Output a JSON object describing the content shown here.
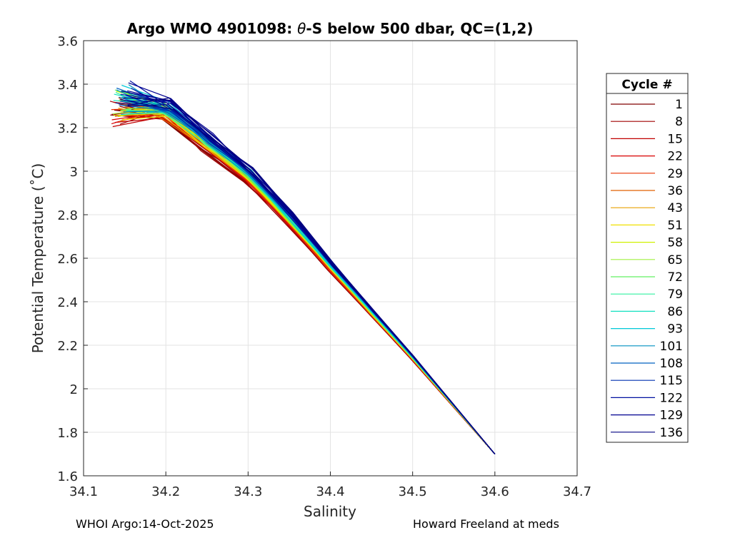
{
  "chart_data": {
    "type": "line",
    "title_prefix": "Argo WMO 4901098: ",
    "title_theta": "θ",
    "title_suffix": "-S below 500 dbar,  QC=(1,2)",
    "xlabel": "Salinity",
    "ylabel": "Potential Temperature (˚C)",
    "xlim": [
      34.1,
      34.7
    ],
    "ylim": [
      1.6,
      3.6
    ],
    "x_ticks": [
      "34.1",
      "34.2",
      "34.3",
      "34.4",
      "34.5",
      "34.6",
      "34.7"
    ],
    "y_ticks": [
      "1.6",
      "1.8",
      "2",
      "2.2",
      "2.4",
      "2.6",
      "2.8",
      "3",
      "3.2",
      "3.4",
      "3.6"
    ],
    "grid": true,
    "legend_title": "Cycle #",
    "legend_position": "right",
    "series": [
      {
        "name": "1",
        "color": "#800000"
      },
      {
        "name": "8",
        "color": "#a00000"
      },
      {
        "name": "15",
        "color": "#c00000"
      },
      {
        "name": "22",
        "color": "#d80000"
      },
      {
        "name": "29",
        "color": "#e83000"
      },
      {
        "name": "36",
        "color": "#e06000"
      },
      {
        "name": "43",
        "color": "#e8a000"
      },
      {
        "name": "51",
        "color": "#f0e000"
      },
      {
        "name": "58",
        "color": "#d0f000"
      },
      {
        "name": "65",
        "color": "#a0f040"
      },
      {
        "name": "72",
        "color": "#60f060"
      },
      {
        "name": "79",
        "color": "#30f0a0"
      },
      {
        "name": "86",
        "color": "#10e0c0"
      },
      {
        "name": "93",
        "color": "#00c8d8"
      },
      {
        "name": "101",
        "color": "#0090c0"
      },
      {
        "name": "108",
        "color": "#0060c0"
      },
      {
        "name": "115",
        "color": "#0030b0"
      },
      {
        "name": "122",
        "color": "#0010a0"
      },
      {
        "name": "129",
        "color": "#000090"
      },
      {
        "name": "136",
        "color": "#000080"
      }
    ],
    "profile_shape": {
      "salinity": [
        34.6,
        34.55,
        34.5,
        34.45,
        34.4,
        34.35,
        34.3,
        34.25,
        34.2
      ],
      "temperature": [
        1.7,
        1.92,
        2.14,
        2.35,
        2.56,
        2.78,
        2.98,
        3.13,
        3.28
      ]
    }
  },
  "footer": {
    "left": "WHOI Argo:14-Oct-2025",
    "right": "Howard Freeland at meds"
  }
}
